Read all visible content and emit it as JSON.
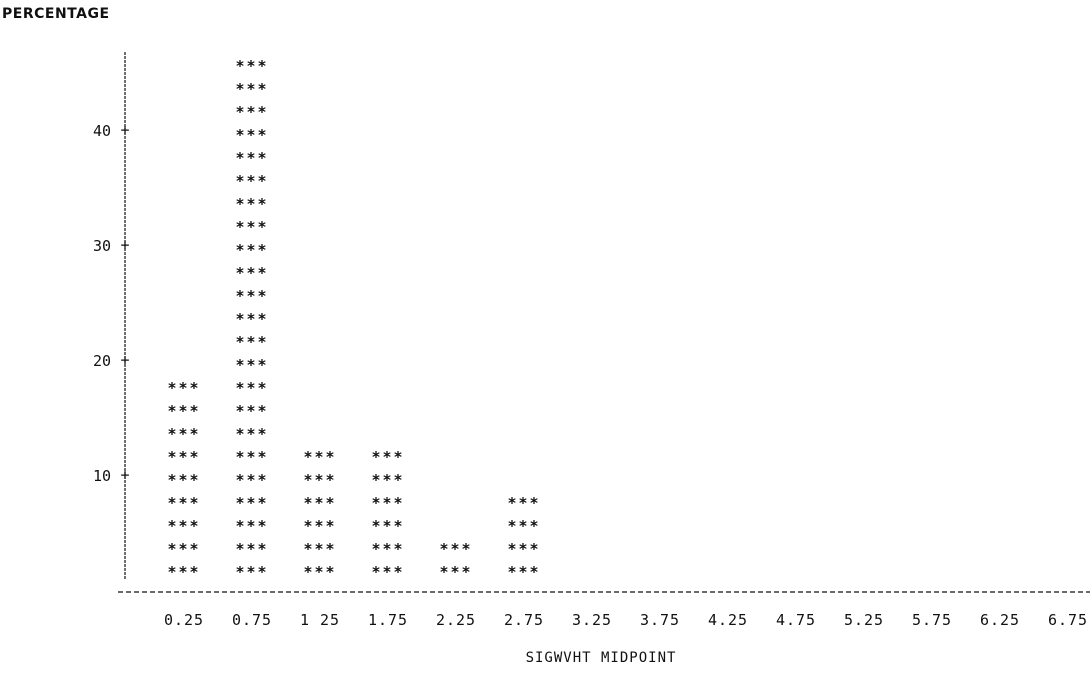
{
  "chart_data": {
    "type": "bar",
    "style": "line-printer asterisk histogram",
    "ylabel": "PERCENTAGE",
    "xlabel": "SIGWVHT MIDPOINT",
    "categories": [
      "0.25",
      "0.75",
      "1 25",
      "1.75",
      "2.25",
      "2.75",
      "3.25",
      "3.75",
      "4.25",
      "4.75",
      "5.25",
      "5.75",
      "6.25",
      "6.75"
    ],
    "values": [
      18,
      46,
      12,
      12,
      4,
      8,
      0,
      0,
      0,
      0,
      0,
      0,
      0,
      0
    ],
    "ylim": [
      0,
      48
    ],
    "yticks": [
      10,
      20,
      30,
      40
    ],
    "ytick_labels": [
      "10",
      "20",
      "30",
      "40"
    ],
    "mark_glyph": "***",
    "grid": false,
    "legend": "none",
    "colors": {
      "ink": "#111111",
      "background": "#ffffff"
    }
  }
}
